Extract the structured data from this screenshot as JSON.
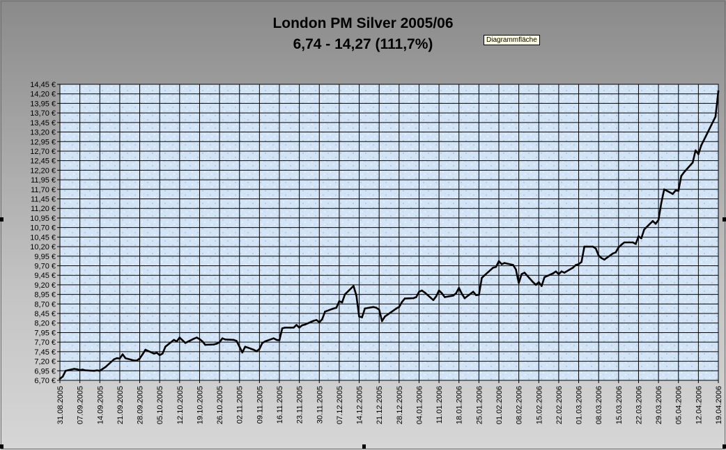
{
  "tooltip": "Diagrammfläche",
  "chart_data": {
    "type": "line",
    "title": "London PM Silver  2005/06",
    "subtitle": "6,74 - 14,27 (111,7%)",
    "xlabel": "",
    "ylabel": "",
    "ylim": [
      6.7,
      14.45
    ],
    "grid": true,
    "y_ticks": [
      "14,45 €",
      "14,20 €",
      "13,95 €",
      "13,70 €",
      "13,45 €",
      "13,20 €",
      "12,95 €",
      "12,70 €",
      "12,45 €",
      "12,20 €",
      "11,95 €",
      "11,70 €",
      "11,45 €",
      "11,20 €",
      "10,95 €",
      "10,70 €",
      "10,45 €",
      "10,20 €",
      "9,95 €",
      "9,70 €",
      "9,45 €",
      "9,20 €",
      "8,95 €",
      "8,70 €",
      "8,45 €",
      "8,20 €",
      "7,95 €",
      "7,70 €",
      "7,45 €",
      "7,20 €",
      "6,95 €",
      "6,70 €"
    ],
    "x_ticks": [
      "31.08.2005",
      "07.09.2005",
      "14.09.2005",
      "21.09.2005",
      "28.09.2005",
      "05.10.2005",
      "12.10.2005",
      "19.10.2005",
      "26.10.2005",
      "02.11.2005",
      "09.11.2005",
      "16.11.2005",
      "23.11.2005",
      "30.11.2005",
      "07.12.2005",
      "14.12.2005",
      "21.12.2005",
      "28.12.2005",
      "04.01.2006",
      "11.01.2006",
      "18.01.2006",
      "25.01.2006",
      "01.02.2006",
      "08.02.2006",
      "15.02.2006",
      "22.02.2006",
      "01.03.2006",
      "08.03.2006",
      "15.03.2006",
      "22.03.2006",
      "29.03.2006",
      "05.04.2006",
      "12.04.2006",
      "19.04.2006"
    ],
    "series": [
      {
        "color": "#000000",
        "points": [
          [
            "31.08.2005",
            6.74
          ],
          [
            "01.09.2005",
            6.8
          ],
          [
            "02.09.2005",
            6.95
          ],
          [
            "05.09.2005",
            7.0
          ],
          [
            "06.09.2005",
            6.99
          ],
          [
            "07.09.2005",
            6.97
          ],
          [
            "08.09.2005",
            6.98
          ],
          [
            "09.09.2005",
            6.96
          ],
          [
            "12.09.2005",
            6.95
          ],
          [
            "13.09.2005",
            6.96
          ],
          [
            "14.09.2005",
            6.95
          ],
          [
            "15.09.2005",
            7.0
          ],
          [
            "16.09.2005",
            7.05
          ],
          [
            "19.09.2005",
            7.25
          ],
          [
            "20.09.2005",
            7.28
          ],
          [
            "21.09.2005",
            7.27
          ],
          [
            "22.09.2005",
            7.38
          ],
          [
            "23.09.2005",
            7.28
          ],
          [
            "26.09.2005",
            7.22
          ],
          [
            "27.09.2005",
            7.22
          ],
          [
            "28.09.2005",
            7.27
          ],
          [
            "29.09.2005",
            7.38
          ],
          [
            "30.09.2005",
            7.5
          ],
          [
            "03.10.2005",
            7.4
          ],
          [
            "04.10.2005",
            7.42
          ],
          [
            "05.10.2005",
            7.36
          ],
          [
            "06.10.2005",
            7.4
          ],
          [
            "07.10.2005",
            7.58
          ],
          [
            "10.10.2005",
            7.76
          ],
          [
            "11.10.2005",
            7.72
          ],
          [
            "12.10.2005",
            7.82
          ],
          [
            "13.10.2005",
            7.75
          ],
          [
            "14.10.2005",
            7.68
          ],
          [
            "17.10.2005",
            7.79
          ],
          [
            "18.10.2005",
            7.82
          ],
          [
            "19.10.2005",
            7.78
          ],
          [
            "20.10.2005",
            7.72
          ],
          [
            "21.10.2005",
            7.63
          ],
          [
            "24.10.2005",
            7.64
          ],
          [
            "25.10.2005",
            7.66
          ],
          [
            "26.10.2005",
            7.7
          ],
          [
            "27.10.2005",
            7.8
          ],
          [
            "28.10.2005",
            7.77
          ],
          [
            "31.10.2005",
            7.76
          ],
          [
            "01.11.2005",
            7.73
          ],
          [
            "02.11.2005",
            7.58
          ],
          [
            "03.11.2005",
            7.43
          ],
          [
            "04.11.2005",
            7.58
          ],
          [
            "07.11.2005",
            7.5
          ],
          [
            "08.11.2005",
            7.46
          ],
          [
            "09.11.2005",
            7.52
          ],
          [
            "10.11.2005",
            7.68
          ],
          [
            "11.11.2005",
            7.72
          ],
          [
            "14.11.2005",
            7.8
          ],
          [
            "15.11.2005",
            7.76
          ],
          [
            "16.11.2005",
            7.75
          ],
          [
            "17.11.2005",
            8.06
          ],
          [
            "18.11.2005",
            8.08
          ],
          [
            "21.11.2005",
            8.08
          ],
          [
            "22.11.2005",
            8.15
          ],
          [
            "23.11.2005",
            8.08
          ],
          [
            "24.11.2005",
            8.14
          ],
          [
            "25.11.2005",
            8.16
          ],
          [
            "28.11.2005",
            8.26
          ],
          [
            "29.11.2005",
            8.28
          ],
          [
            "30.11.2005",
            8.22
          ],
          [
            "01.12.2005",
            8.3
          ],
          [
            "02.12.2005",
            8.5
          ],
          [
            "05.12.2005",
            8.58
          ],
          [
            "06.12.2005",
            8.6
          ],
          [
            "07.12.2005",
            8.77
          ],
          [
            "08.12.2005",
            8.74
          ],
          [
            "09.12.2005",
            8.95
          ],
          [
            "12.12.2005",
            9.17
          ],
          [
            "13.12.2005",
            8.92
          ],
          [
            "14.12.2005",
            8.37
          ],
          [
            "15.12.2005",
            8.35
          ],
          [
            "16.12.2005",
            8.58
          ],
          [
            "19.12.2005",
            8.62
          ],
          [
            "20.12.2005",
            8.6
          ],
          [
            "21.12.2005",
            8.55
          ],
          [
            "22.12.2005",
            8.25
          ],
          [
            "23.12.2005",
            8.37
          ],
          [
            "27.12.2005",
            8.58
          ],
          [
            "28.12.2005",
            8.62
          ],
          [
            "29.12.2005",
            8.75
          ],
          [
            "30.12.2005",
            8.84
          ],
          [
            "02.01.2006",
            8.85
          ],
          [
            "03.01.2006",
            8.88
          ],
          [
            "04.01.2006",
            9.02
          ],
          [
            "05.01.2006",
            9.05
          ],
          [
            "06.01.2006",
            9.0
          ],
          [
            "09.01.2006",
            8.8
          ],
          [
            "10.01.2006",
            8.9
          ],
          [
            "11.01.2006",
            9.05
          ],
          [
            "12.01.2006",
            8.98
          ],
          [
            "13.01.2006",
            8.88
          ],
          [
            "16.01.2006",
            8.92
          ],
          [
            "17.01.2006",
            8.98
          ],
          [
            "18.01.2006",
            9.12
          ],
          [
            "19.01.2006",
            8.97
          ],
          [
            "20.01.2006",
            8.85
          ],
          [
            "23.01.2006",
            9.02
          ],
          [
            "24.01.2006",
            8.93
          ],
          [
            "25.01.2006",
            8.94
          ],
          [
            "26.01.2006",
            9.38
          ],
          [
            "27.01.2006",
            9.45
          ],
          [
            "30.01.2006",
            9.65
          ],
          [
            "31.01.2006",
            9.67
          ],
          [
            "01.02.2006",
            9.82
          ],
          [
            "02.02.2006",
            9.74
          ],
          [
            "03.02.2006",
            9.77
          ],
          [
            "06.02.2006",
            9.72
          ],
          [
            "07.02.2006",
            9.6
          ],
          [
            "08.02.2006",
            9.25
          ],
          [
            "09.02.2006",
            9.48
          ],
          [
            "10.02.2006",
            9.52
          ],
          [
            "13.02.2006",
            9.27
          ],
          [
            "14.02.2006",
            9.2
          ],
          [
            "15.02.2006",
            9.27
          ],
          [
            "16.02.2006",
            9.17
          ],
          [
            "17.02.2006",
            9.4
          ],
          [
            "20.02.2006",
            9.5
          ],
          [
            "21.02.2006",
            9.55
          ],
          [
            "22.02.2006",
            9.48
          ],
          [
            "23.02.2006",
            9.55
          ],
          [
            "24.02.2006",
            9.52
          ],
          [
            "27.02.2006",
            9.65
          ],
          [
            "28.02.2006",
            9.72
          ],
          [
            "01.03.2006",
            9.74
          ],
          [
            "02.03.2006",
            9.8
          ],
          [
            "03.03.2006",
            10.2
          ],
          [
            "06.03.2006",
            10.2
          ],
          [
            "07.03.2006",
            10.15
          ],
          [
            "08.03.2006",
            9.97
          ],
          [
            "09.03.2006",
            9.9
          ],
          [
            "10.03.2006",
            9.86
          ],
          [
            "13.03.2006",
            10.02
          ],
          [
            "14.03.2006",
            10.05
          ],
          [
            "15.03.2006",
            10.18
          ],
          [
            "16.03.2006",
            10.25
          ],
          [
            "17.03.2006",
            10.31
          ],
          [
            "20.03.2006",
            10.31
          ],
          [
            "21.03.2006",
            10.27
          ],
          [
            "22.03.2006",
            10.47
          ],
          [
            "23.03.2006",
            10.42
          ],
          [
            "24.03.2006",
            10.65
          ],
          [
            "27.03.2006",
            10.87
          ],
          [
            "28.03.2006",
            10.8
          ],
          [
            "29.03.2006",
            10.9
          ],
          [
            "30.03.2006",
            11.35
          ],
          [
            "31.03.2006",
            11.7
          ],
          [
            "03.04.2006",
            11.58
          ],
          [
            "04.04.2006",
            11.67
          ],
          [
            "05.04.2006",
            11.66
          ],
          [
            "06.04.2006",
            12.05
          ],
          [
            "07.04.2006",
            12.15
          ],
          [
            "10.04.2006",
            12.4
          ],
          [
            "11.04.2006",
            12.72
          ],
          [
            "12.04.2006",
            12.62
          ],
          [
            "13.04.2006",
            12.85
          ],
          [
            "18.04.2006",
            13.6
          ],
          [
            "19.04.2006",
            14.27
          ]
        ]
      }
    ]
  }
}
